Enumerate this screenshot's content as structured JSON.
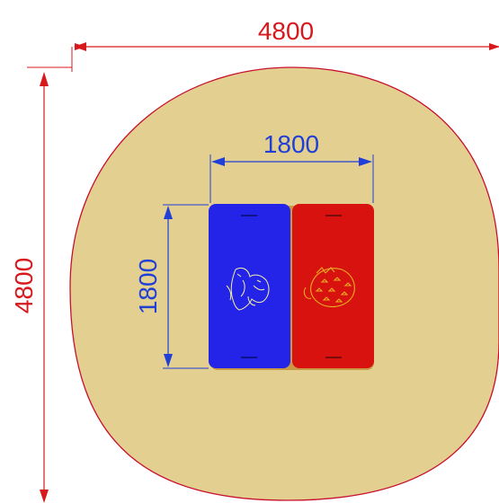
{
  "dimensions": {
    "outer_width": "4800",
    "outer_height": "4800",
    "inner_width": "1800",
    "inner_height": "1800"
  },
  "colors": {
    "area_fill": "#e3cf8f",
    "area_stroke": "#c8102e",
    "outer_dimension": "#d7191c",
    "inner_dimension": "#1f3fd6",
    "panel_left": "#2424e8",
    "panel_right": "#d8120f",
    "panel_base": "#c89a46",
    "panel_left_sketch": "#f2f2a0",
    "panel_right_sketch": "#e8b020"
  },
  "panels": {
    "left_icon": "gorilla-sketch-icon",
    "right_icon": "strawberry-sketch-icon"
  }
}
